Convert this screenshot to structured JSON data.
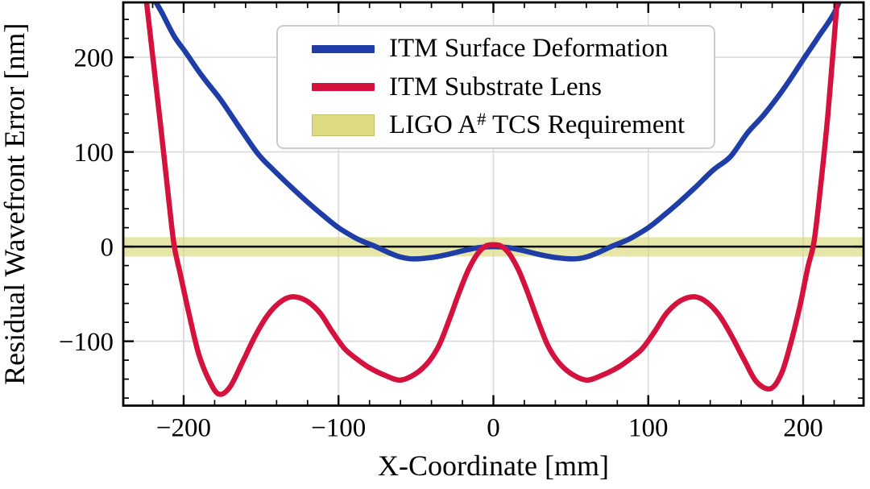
{
  "chart_data": {
    "type": "line",
    "title": "",
    "xlabel": "X-Coordinate [mm]",
    "ylabel": "Residual Wavefront Error [nm]",
    "xlim": [
      -239,
      239
    ],
    "ylim": [
      -168,
      258
    ],
    "x_major_ticks": [
      -200,
      -100,
      0,
      100,
      200
    ],
    "y_major_ticks": [
      -100,
      0,
      100,
      200
    ],
    "minor_tick_step": 20,
    "grid": "major",
    "grid_color": "#dcdcdc",
    "tick_direction": "in",
    "legend_position": "upper left inside",
    "zero_line": {
      "y": 0,
      "color": "#000000"
    },
    "requirement_band": {
      "name": "LIGO A# TCS Requirement",
      "y_range": [
        -10.5,
        10
      ],
      "color": "#d6d66e",
      "opacity": 0.6
    },
    "series": [
      {
        "name": "ITM Surface Deformation",
        "color": "#1e3da6",
        "points": [
          [
            -232,
            320
          ],
          [
            -222,
            272
          ],
          [
            -214,
            247
          ],
          [
            -206,
            222
          ],
          [
            -199,
            206
          ],
          [
            -188,
            180
          ],
          [
            -176,
            155
          ],
          [
            -164,
            126
          ],
          [
            -152,
            98
          ],
          [
            -142,
            81
          ],
          [
            -130,
            62
          ],
          [
            -120,
            47
          ],
          [
            -110,
            33
          ],
          [
            -100,
            20
          ],
          [
            -90,
            10
          ],
          [
            -85,
            6
          ],
          [
            -76,
            0
          ],
          [
            -68,
            -6
          ],
          [
            -60,
            -11
          ],
          [
            -52,
            -13
          ],
          [
            -40,
            -11.5
          ],
          [
            -30,
            -8.5
          ],
          [
            -20,
            -4.5
          ],
          [
            -10,
            -1.2
          ],
          [
            0,
            0
          ],
          [
            10,
            -1.2
          ],
          [
            20,
            -4.5
          ],
          [
            30,
            -8.5
          ],
          [
            40,
            -11.5
          ],
          [
            52,
            -13
          ],
          [
            60,
            -11
          ],
          [
            68,
            -6
          ],
          [
            76,
            0
          ],
          [
            85,
            6
          ],
          [
            90,
            10
          ],
          [
            100,
            20
          ],
          [
            110,
            33
          ],
          [
            120,
            47
          ],
          [
            130,
            62
          ],
          [
            142,
            81
          ],
          [
            153,
            95
          ],
          [
            164,
            120
          ],
          [
            175,
            140
          ],
          [
            188,
            168
          ],
          [
            201,
            200
          ],
          [
            210,
            222
          ],
          [
            221,
            250
          ],
          [
            230,
            290
          ],
          [
            238,
            340
          ]
        ]
      },
      {
        "name": "ITM Substrate Lens",
        "color": "#d5123e",
        "points": [
          [
            -230,
            345
          ],
          [
            -222,
            230
          ],
          [
            -215,
            130
          ],
          [
            -209,
            40
          ],
          [
            -206,
            0
          ],
          [
            -202,
            -30
          ],
          [
            -196,
            -75
          ],
          [
            -190,
            -115
          ],
          [
            -183,
            -143
          ],
          [
            -177,
            -156
          ],
          [
            -170,
            -148
          ],
          [
            -162,
            -122
          ],
          [
            -154,
            -95
          ],
          [
            -146,
            -73
          ],
          [
            -138,
            -59
          ],
          [
            -130,
            -53
          ],
          [
            -121,
            -57
          ],
          [
            -112,
            -70
          ],
          [
            -104,
            -90
          ],
          [
            -96,
            -108
          ],
          [
            -88,
            -119
          ],
          [
            -80,
            -128
          ],
          [
            -70,
            -136
          ],
          [
            -60,
            -141
          ],
          [
            -50,
            -134
          ],
          [
            -42,
            -122
          ],
          [
            -35,
            -104
          ],
          [
            -28,
            -75
          ],
          [
            -22,
            -48
          ],
          [
            -16,
            -24
          ],
          [
            -10,
            -7
          ],
          [
            -5,
            0.5
          ],
          [
            0,
            2
          ],
          [
            5,
            0.5
          ],
          [
            10,
            -7
          ],
          [
            16,
            -24
          ],
          [
            22,
            -48
          ],
          [
            28,
            -75
          ],
          [
            35,
            -104
          ],
          [
            42,
            -122
          ],
          [
            50,
            -134
          ],
          [
            60,
            -141
          ],
          [
            70,
            -136
          ],
          [
            80,
            -128
          ],
          [
            88,
            -119
          ],
          [
            96,
            -108
          ],
          [
            104,
            -90
          ],
          [
            112,
            -70
          ],
          [
            121,
            -57
          ],
          [
            130,
            -53
          ],
          [
            138,
            -59
          ],
          [
            146,
            -73
          ],
          [
            154,
            -95
          ],
          [
            162,
            -120
          ],
          [
            170,
            -143
          ],
          [
            179,
            -150
          ],
          [
            186,
            -134
          ],
          [
            192,
            -102
          ],
          [
            198,
            -62
          ],
          [
            203,
            -22
          ],
          [
            207,
            5
          ],
          [
            211,
            60
          ],
          [
            216,
            140
          ],
          [
            221,
            240
          ],
          [
            226,
            345
          ]
        ]
      }
    ]
  },
  "axes": {
    "x_tick_labels": [
      "−200",
      "−100",
      "0",
      "100",
      "200"
    ],
    "y_tick_labels": [
      "−100",
      "0",
      "100",
      "200"
    ],
    "xlabel": "X-Coordinate [mm]",
    "ylabel": "Residual Wavefront Error [nm]"
  },
  "legend": {
    "entries": [
      {
        "label": "ITM Surface Deformation",
        "swatch": "blue-line"
      },
      {
        "label": "ITM Substrate Lens",
        "swatch": "red-line"
      },
      {
        "label": "LIGO A# TCS Requirement",
        "label_prefix": "LIGO A",
        "label_sup": "#",
        "label_suffix": " TCS Requirement",
        "swatch": "yellow-patch"
      }
    ]
  },
  "style": {
    "background": "#ffffff",
    "frame_color": "#000000",
    "curve_width": 6.5
  }
}
